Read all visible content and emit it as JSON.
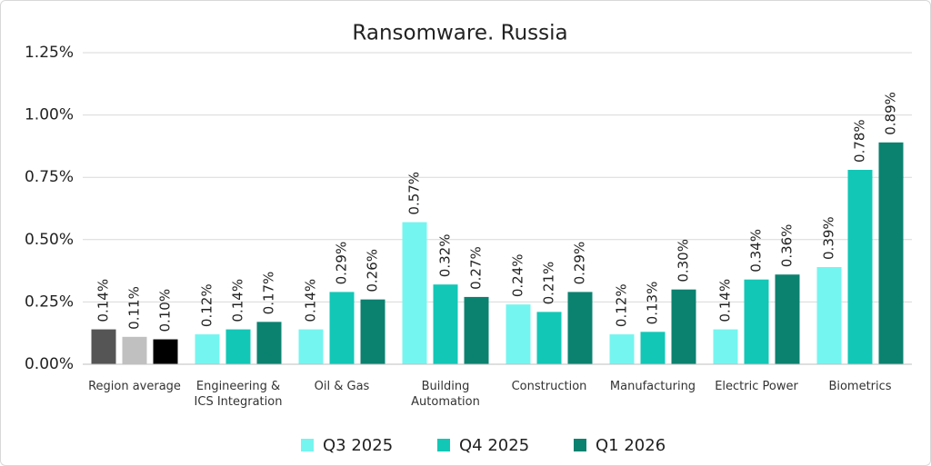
{
  "chart_data": {
    "type": "bar",
    "title": "Ransomware. Russia",
    "categories": [
      "Region average",
      "Engineering &\nICS Integration",
      "Oil & Gas",
      "Building\nAutomation",
      "Construction",
      "Manufacturing",
      "Electric Power",
      "Biometrics"
    ],
    "series": [
      {
        "name": "Q3 2025",
        "color": "#75f5ef",
        "colors": [
          "#555555",
          "#75f5ef",
          "#75f5ef",
          "#75f5ef",
          "#75f5ef",
          "#75f5ef",
          "#75f5ef",
          "#75f5ef"
        ],
        "values": [
          0.14,
          0.12,
          0.14,
          0.57,
          0.24,
          0.12,
          0.14,
          0.39
        ],
        "value_labels": [
          "0.14%",
          "0.12%",
          "0.14%",
          "0.57%",
          "0.24%",
          "0.12%",
          "0.14%",
          "0.39%"
        ]
      },
      {
        "name": "Q4 2025",
        "color": "#12c7b6",
        "colors": [
          "#c0c0c0",
          "#12c7b6",
          "#12c7b6",
          "#12c7b6",
          "#12c7b6",
          "#12c7b6",
          "#12c7b6",
          "#12c7b6"
        ],
        "values": [
          0.11,
          0.14,
          0.29,
          0.32,
          0.21,
          0.13,
          0.34,
          0.78
        ],
        "value_labels": [
          "0.11%",
          "0.14%",
          "0.29%",
          "0.32%",
          "0.21%",
          "0.13%",
          "0.34%",
          "0.78%"
        ]
      },
      {
        "name": "Q1 2026",
        "color": "#0b8270",
        "colors": [
          "#000000",
          "#0b8270",
          "#0b8270",
          "#0b8270",
          "#0b8270",
          "#0b8270",
          "#0b8270",
          "#0b8270"
        ],
        "values": [
          0.1,
          0.17,
          0.26,
          0.27,
          0.29,
          0.3,
          0.36,
          0.89
        ],
        "value_labels": [
          "0.10%",
          "0.17%",
          "0.26%",
          "0.27%",
          "0.29%",
          "0.30%",
          "0.36%",
          "0.89%"
        ]
      }
    ],
    "ylim": [
      0,
      1.25
    ],
    "yticks": [
      {
        "value": 0,
        "label": "0.00%"
      },
      {
        "value": 0.25,
        "label": "0.25%"
      },
      {
        "value": 0.5,
        "label": "0.50%"
      },
      {
        "value": 0.75,
        "label": "0.75%"
      },
      {
        "value": 1,
        "label": "1.00%"
      },
      {
        "value": 1.25,
        "label": "1.25%"
      }
    ],
    "grid": true
  }
}
